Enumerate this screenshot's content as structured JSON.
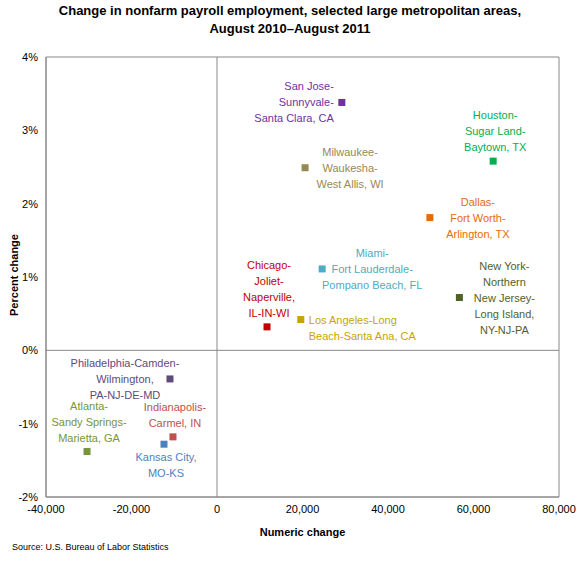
{
  "chart_data": {
    "type": "scatter",
    "title": "Change in nonfarm payroll employment, selected large metropolitan areas,\nAugust 2010–August 2011",
    "x_label": "Numeric change",
    "y_label": "Percent change",
    "source": "Source: U.S. Bureau of Labor Statistics",
    "xlim": [
      -40000,
      80000
    ],
    "xticks": [
      {
        "value": -40000,
        "label": "-40,000"
      },
      {
        "value": -20000,
        "label": "-20,000"
      },
      0,
      {
        "value": 20000,
        "label": "20,000"
      },
      {
        "value": 40000,
        "label": "40,000"
      },
      {
        "value": 60000,
        "label": "60,000"
      },
      {
        "value": 80000,
        "label": "80,000"
      }
    ],
    "ylim": [
      -2,
      4
    ],
    "yticks": [
      {
        "value": -2,
        "label": "-2%"
      },
      {
        "value": -1,
        "label": "-1%"
      },
      {
        "value": 0,
        "label": "0%"
      },
      {
        "value": 1,
        "label": "1%"
      },
      {
        "value": 2,
        "label": "2%"
      },
      {
        "value": 3,
        "label": "3%"
      },
      {
        "value": 4,
        "label": "4%"
      }
    ],
    "grid": false,
    "marker": "square",
    "data_labels": false,
    "series": [
      {
        "name": "San Jose-\nSunnyvale-\nSanta Clara, CA",
        "color": "#7030a0",
        "x": [
          29200
        ],
        "y": [
          3.38
        ]
      },
      {
        "name": "Houston-\nSugar Land-\nBaytown, TX",
        "color": "#00b050",
        "x": [
          64600
        ],
        "y": [
          2.58
        ]
      },
      {
        "name": "Milwaukee-\nWaukesha-\nWest Allis, WI",
        "color": "#948a54",
        "x": [
          20600
        ],
        "y": [
          2.49
        ]
      },
      {
        "name": "Dallas-\nFort Worth-\nArlington, TX",
        "color": "#e46c0a",
        "x": [
          49800
        ],
        "y": [
          1.81
        ]
      },
      {
        "name": "Miami-\nFort Lauderdale-\nPompano Beach, FL",
        "color": "#4bacc6",
        "x": [
          24600
        ],
        "y": [
          1.11
        ]
      },
      {
        "name": "New York-\nNorthern\nNew Jersey-\nLong Island,\nNY-NJ-PA",
        "color": "#4f6228",
        "x": [
          56700
        ],
        "y": [
          0.72
        ]
      },
      {
        "name": "Chicago-\nJoliet-\nNaperville,\nIL-IN-WI",
        "color": "#c00000",
        "x": [
          11700
        ],
        "y": [
          0.32
        ]
      },
      {
        "name": "Los Angeles-Long\nBeach-Santa Ana, CA",
        "color": "#c8a400",
        "x": [
          19600
        ],
        "y": [
          0.42
        ]
      },
      {
        "name": "Philadelphia-Camden-\nWilmington,\nPA-NJ-DE-MD",
        "color": "#604a7b",
        "x": [
          -11000
        ],
        "y": [
          -0.39
        ]
      },
      {
        "name": "Atlanta-\nSandy Springs-\nMarietta, GA",
        "color": "#77933c",
        "x": [
          -30400
        ],
        "y": [
          -1.38
        ]
      },
      {
        "name": "Indianapolis-\nCarmel, IN",
        "color": "#c0504d",
        "x": [
          -10300
        ],
        "y": [
          -1.18
        ]
      },
      {
        "name": "Kansas City,\nMO-KS",
        "color": "#4f81bd",
        "x": [
          -12400
        ],
        "y": [
          -1.28
        ]
      }
    ]
  }
}
